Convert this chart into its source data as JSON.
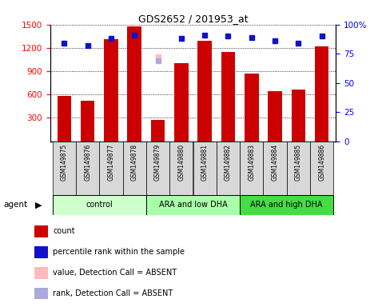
{
  "title": "GDS2652 / 201953_at",
  "samples": [
    "GSM149875",
    "GSM149876",
    "GSM149877",
    "GSM149878",
    "GSM149879",
    "GSM149880",
    "GSM149881",
    "GSM149882",
    "GSM149883",
    "GSM149884",
    "GSM149885",
    "GSM149886"
  ],
  "counts": [
    580,
    520,
    1310,
    1480,
    270,
    1000,
    1290,
    1150,
    870,
    640,
    660,
    1220
  ],
  "percentile_ranks": [
    84,
    82,
    88,
    91,
    null,
    88,
    91,
    90,
    89,
    86,
    84,
    90
  ],
  "absent_value_idx": 4,
  "absent_value": 1090,
  "absent_rank": 69,
  "groups": [
    {
      "label": "control",
      "start": 0,
      "end": 3,
      "color": "#ccffcc"
    },
    {
      "label": "ARA and low DHA",
      "start": 4,
      "end": 7,
      "color": "#aaffaa"
    },
    {
      "label": "ARA and high DHA",
      "start": 8,
      "end": 11,
      "color": "#44dd44"
    }
  ],
  "ylim_left": [
    0,
    1500
  ],
  "ylim_right": [
    0,
    100
  ],
  "yticks_left": [
    300,
    600,
    900,
    1200,
    1500
  ],
  "yticks_right": [
    0,
    25,
    50,
    75,
    100
  ],
  "bar_color": "#cc0000",
  "dot_color_blue": "#1111cc",
  "dot_color_absent_value": "#ffbbbb",
  "dot_color_absent_rank": "#aaaadd",
  "legend_items": [
    {
      "color": "#cc0000",
      "label": "count"
    },
    {
      "color": "#1111cc",
      "label": "percentile rank within the sample"
    },
    {
      "color": "#ffbbbb",
      "label": "value, Detection Call = ABSENT"
    },
    {
      "color": "#aaaadd",
      "label": "rank, Detection Call = ABSENT"
    }
  ],
  "agent_label": "agent",
  "bar_width": 0.6
}
